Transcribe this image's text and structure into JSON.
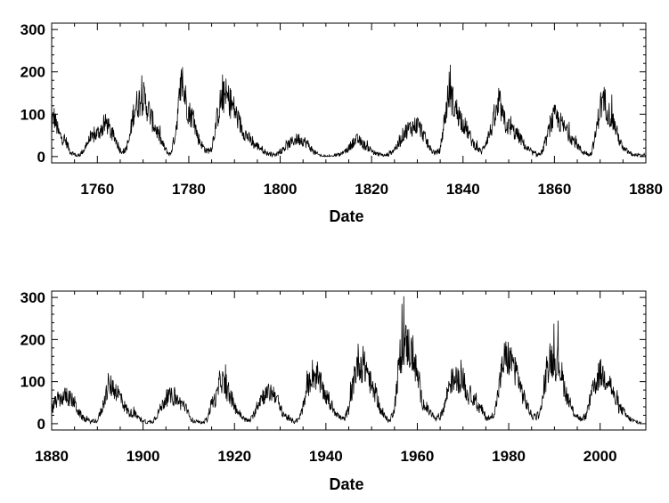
{
  "chart_data": [
    {
      "type": "line",
      "xlabel": "Date",
      "ylabel": "",
      "xlim": [
        1750,
        1880
      ],
      "ylim": [
        -15,
        315
      ],
      "xticks": [
        1760,
        1780,
        1800,
        1820,
        1840,
        1860,
        1880
      ],
      "yticks": [
        0,
        100,
        200,
        300
      ],
      "grid": false,
      "line_color": "#000000",
      "series": [
        {
          "x": [
            1749.8,
            1750.5,
            1751.5,
            1752.5,
            1753.2,
            1754,
            1755,
            1755.5,
            1756,
            1757,
            1758,
            1759,
            1760,
            1761,
            1762,
            1763,
            1764,
            1765,
            1766,
            1767,
            1768,
            1769,
            1770,
            1771,
            1772,
            1773,
            1774,
            1775,
            1775.5,
            1776,
            1777,
            1778,
            1778.5,
            1779,
            1780,
            1781,
            1782,
            1783,
            1784,
            1785,
            1786,
            1787,
            1788,
            1789,
            1790,
            1791,
            1792,
            1793,
            1794,
            1795,
            1796,
            1797,
            1798,
            1799,
            1800,
            1801,
            1802,
            1803,
            1804,
            1805,
            1806,
            1807,
            1808,
            1809,
            1810,
            1811,
            1812,
            1813,
            1814,
            1815,
            1816,
            1817,
            1818,
            1819,
            1820,
            1821,
            1822,
            1823,
            1824,
            1825,
            1826,
            1827,
            1828,
            1829,
            1830,
            1831,
            1832,
            1833,
            1834,
            1835,
            1836,
            1837,
            1838,
            1839,
            1840,
            1841,
            1842,
            1843,
            1844,
            1845,
            1846,
            1847,
            1848,
            1849,
            1850,
            1851,
            1852,
            1853,
            1854,
            1855,
            1856,
            1857,
            1858,
            1859,
            1860,
            1861,
            1862,
            1863,
            1864,
            1865,
            1866,
            1867,
            1868,
            1869,
            1870,
            1871,
            1872,
            1873,
            1874,
            1875,
            1876,
            1877,
            1878,
            1879,
            1880
          ],
          "y": [
            70,
            95,
            55,
            40,
            35,
            12,
            5,
            2,
            3,
            15,
            35,
            45,
            55,
            65,
            80,
            55,
            40,
            15,
            12,
            40,
            110,
            130,
            140,
            115,
            85,
            60,
            35,
            15,
            8,
            5,
            50,
            140,
            180,
            150,
            105,
            90,
            45,
            25,
            12,
            20,
            80,
            130,
            145,
            130,
            110,
            80,
            60,
            45,
            30,
            25,
            18,
            8,
            5,
            3,
            12,
            20,
            30,
            38,
            42,
            38,
            30,
            15,
            6,
            2,
            0,
            0,
            2,
            4,
            10,
            20,
            35,
            40,
            30,
            22,
            15,
            6,
            4,
            2,
            8,
            18,
            30,
            55,
            65,
            70,
            75,
            60,
            35,
            15,
            8,
            15,
            90,
            160,
            120,
            100,
            80,
            60,
            35,
            22,
            10,
            35,
            60,
            90,
            125,
            80,
            70,
            60,
            50,
            35,
            18,
            10,
            5,
            5,
            30,
            70,
            95,
            85,
            70,
            55,
            40,
            28,
            12,
            8,
            5,
            50,
            120,
            130,
            100,
            80,
            45,
            18,
            12,
            5,
            3,
            2,
            4
          ]
        }
      ]
    },
    {
      "type": "line",
      "xlabel": "Date",
      "ylabel": "",
      "xlim": [
        1880,
        2010
      ],
      "ylim": [
        -15,
        315
      ],
      "xticks": [
        1880,
        1900,
        1920,
        1940,
        1960,
        1980,
        2000
      ],
      "yticks": [
        0,
        100,
        200,
        300
      ],
      "grid": false,
      "line_color": "#000000",
      "series": [
        {
          "x": [
            1879.8,
            1880.5,
            1881,
            1882,
            1883,
            1884,
            1885,
            1886,
            1887,
            1888,
            1889,
            1890,
            1891,
            1892,
            1893,
            1894,
            1895,
            1896,
            1897,
            1898,
            1899,
            1900,
            1901,
            1902,
            1903,
            1904,
            1905,
            1906,
            1907,
            1908,
            1909,
            1910,
            1911,
            1912,
            1913,
            1914,
            1915,
            1916,
            1917,
            1918,
            1919,
            1920,
            1921,
            1922,
            1923,
            1924,
            1925,
            1926,
            1927,
            1928,
            1929,
            1930,
            1931,
            1932,
            1933,
            1934,
            1935,
            1936,
            1937,
            1938,
            1939,
            1940,
            1941,
            1942,
            1943,
            1944,
            1945,
            1946,
            1947,
            1948,
            1949,
            1950,
            1951,
            1952,
            1953,
            1954,
            1955,
            1956,
            1957,
            1958,
            1959,
            1960,
            1961,
            1962,
            1963,
            1964,
            1965,
            1966,
            1967,
            1968,
            1969,
            1970,
            1971,
            1972,
            1973,
            1974,
            1975,
            1976,
            1977,
            1978,
            1979,
            1980,
            1981,
            1982,
            1983,
            1984,
            1985,
            1986,
            1987,
            1988,
            1989,
            1990,
            1991,
            1992,
            1993,
            1994,
            1995,
            1996,
            1997,
            1998,
            1999,
            2000,
            2001,
            2002,
            2003,
            2004,
            2005,
            2006,
            2007,
            2008,
            2009
          ],
          "y": [
            30,
            45,
            55,
            60,
            65,
            60,
            50,
            25,
            12,
            7,
            5,
            8,
            35,
            75,
            90,
            80,
            65,
            40,
            25,
            25,
            12,
            8,
            3,
            5,
            20,
            40,
            60,
            65,
            60,
            50,
            45,
            20,
            6,
            3,
            1,
            10,
            50,
            60,
            110,
            85,
            65,
            40,
            25,
            12,
            6,
            15,
            45,
            65,
            70,
            75,
            70,
            35,
            20,
            10,
            5,
            8,
            40,
            85,
            120,
            110,
            90,
            65,
            45,
            30,
            15,
            10,
            35,
            95,
            150,
            135,
            130,
            85,
            70,
            30,
            15,
            5,
            40,
            140,
            190,
            185,
            160,
            115,
            55,
            35,
            25,
            10,
            15,
            45,
            95,
            105,
            105,
            105,
            65,
            70,
            40,
            35,
            15,
            12,
            30,
            95,
            155,
            155,
            140,
            115,
            70,
            45,
            18,
            15,
            30,
            100,
            160,
            145,
            145,
            95,
            55,
            30,
            18,
            8,
            20,
            65,
            95,
            120,
            110,
            105,
            65,
            40,
            30,
            15,
            8,
            3,
            2
          ]
        }
      ]
    }
  ]
}
